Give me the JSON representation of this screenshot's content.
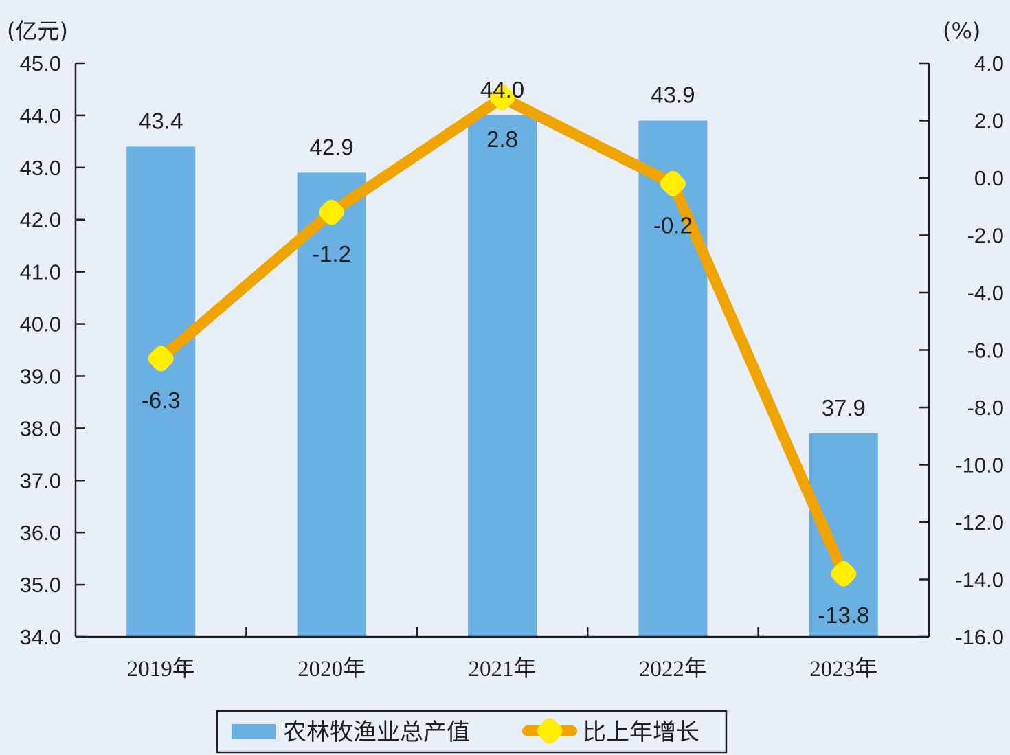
{
  "chart_data": {
    "type": "bar",
    "categories": [
      "2019年",
      "2020年",
      "2021年",
      "2022年",
      "2023年"
    ],
    "series": [
      {
        "name": "农林牧渔业总产值",
        "type": "bar",
        "axis": "left",
        "color": "#6ab0e2",
        "values": [
          43.4,
          42.9,
          44.0,
          43.9,
          37.9
        ]
      },
      {
        "name": "比上年增长",
        "type": "line",
        "axis": "right",
        "color": "#f0a400",
        "marker_color": "#ffee00",
        "values": [
          -6.3,
          -1.2,
          2.8,
          -0.2,
          -13.8
        ]
      }
    ],
    "ylabel_left": "(亿元)",
    "ylabel_right": "(%)",
    "ylim_left": [
      34.0,
      45.0
    ],
    "ylim_right": [
      -16.0,
      4.0
    ],
    "yticks_left": [
      "45.0",
      "44.0",
      "43.0",
      "42.0",
      "41.0",
      "40.0",
      "39.0",
      "38.0",
      "37.0",
      "36.0",
      "35.0",
      "34.0"
    ],
    "yticks_right": [
      "4.0",
      "2.0",
      "0.0",
      "-2.0",
      "-4.0",
      "-6.0",
      "-8.0",
      "-10.0",
      "-12.0",
      "-14.0",
      "-16.0"
    ],
    "bar_labels": [
      "43.4",
      "42.9",
      "44.0",
      "43.9",
      "37.9"
    ],
    "line_labels": [
      "-6.3",
      "-1.2",
      "2.8",
      "-0.2",
      "-13.8"
    ],
    "legend_position": "bottom",
    "grid": false
  }
}
